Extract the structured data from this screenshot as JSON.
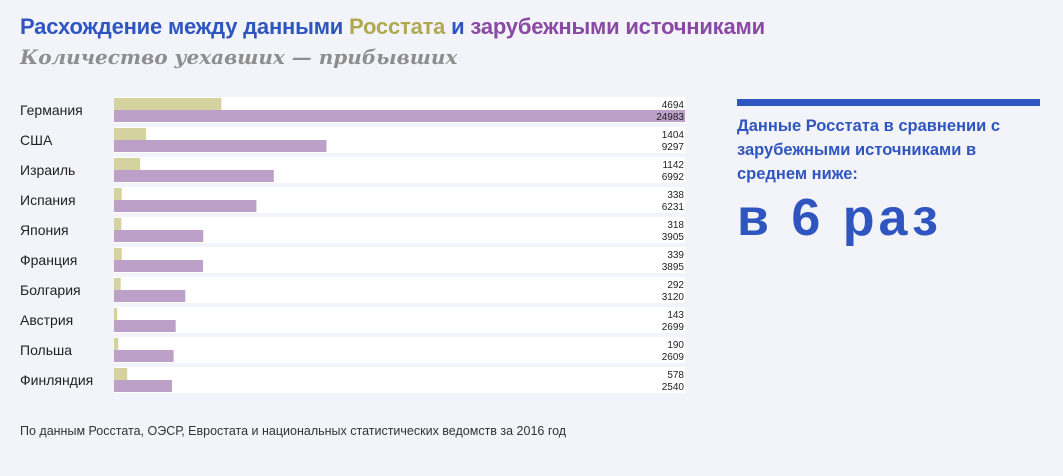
{
  "title": {
    "part1": "Расхождение между данными ",
    "part2": "Росстата",
    "part3": " и ",
    "part4": "зарубежными источниками"
  },
  "subtitle": "Количество уехавших — прибывших",
  "colors": {
    "rosstat": "#d4d39f",
    "foreign": "#bca0c8",
    "accent": "#2f55c0",
    "row_bg": "#ffffff"
  },
  "chart_data": {
    "type": "bar",
    "orientation": "horizontal",
    "categories": [
      "Германия",
      "США",
      "Израиль",
      "Испания",
      "Япония",
      "Франция",
      "Болгария",
      "Австрия",
      "Польша",
      "Финляндия"
    ],
    "series": [
      {
        "name": "Росстат",
        "values": [
          4694,
          1404,
          1142,
          338,
          318,
          339,
          292,
          143,
          190,
          578
        ]
      },
      {
        "name": "зарубежные источники",
        "values": [
          24983,
          9297,
          6992,
          6231,
          3905,
          3895,
          3120,
          2699,
          2609,
          2540
        ]
      }
    ],
    "xlim": [
      0,
      24983
    ]
  },
  "callout": {
    "text": "Данные Росстата в сравнении с зарубежными источниками в среднем ниже:",
    "big": "в 6 раз"
  },
  "source": "По данным Росстата, ОЭСР, Евростата и национальных статистических ведомств за 2016 год"
}
